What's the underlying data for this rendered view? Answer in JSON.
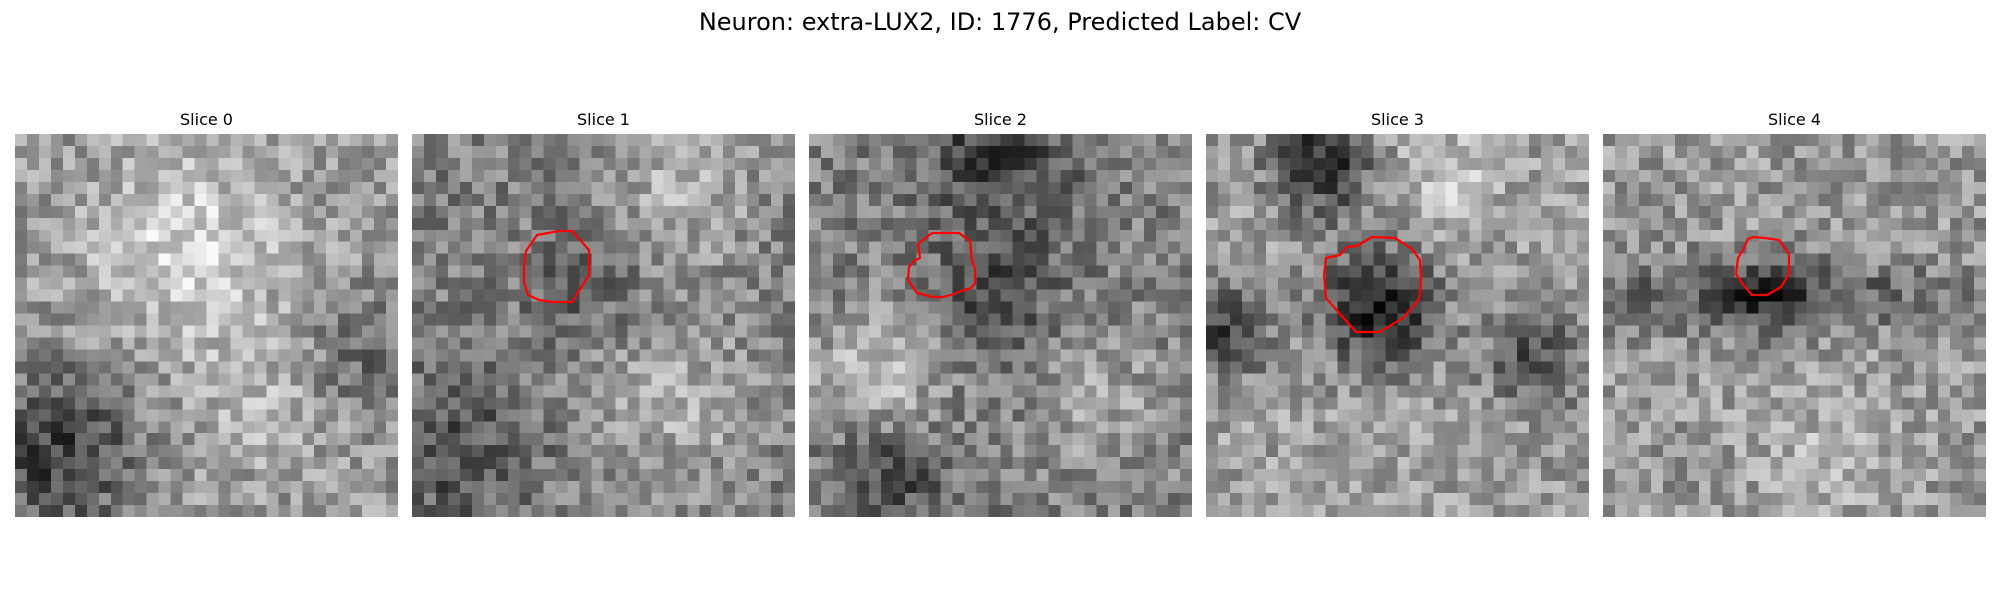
{
  "figure": {
    "title": "Neuron: extra-LUX2, ID: 1776, Predicted Label: CV",
    "contour_color": "#ff0000"
  },
  "panels": [
    {
      "label": "Slice 0",
      "has_contour": false
    },
    {
      "label": "Slice 1",
      "has_contour": true
    },
    {
      "label": "Slice 2",
      "has_contour": true
    },
    {
      "label": "Slice 3",
      "has_contour": true
    },
    {
      "label": "Slice 4",
      "has_contour": true
    }
  ]
}
